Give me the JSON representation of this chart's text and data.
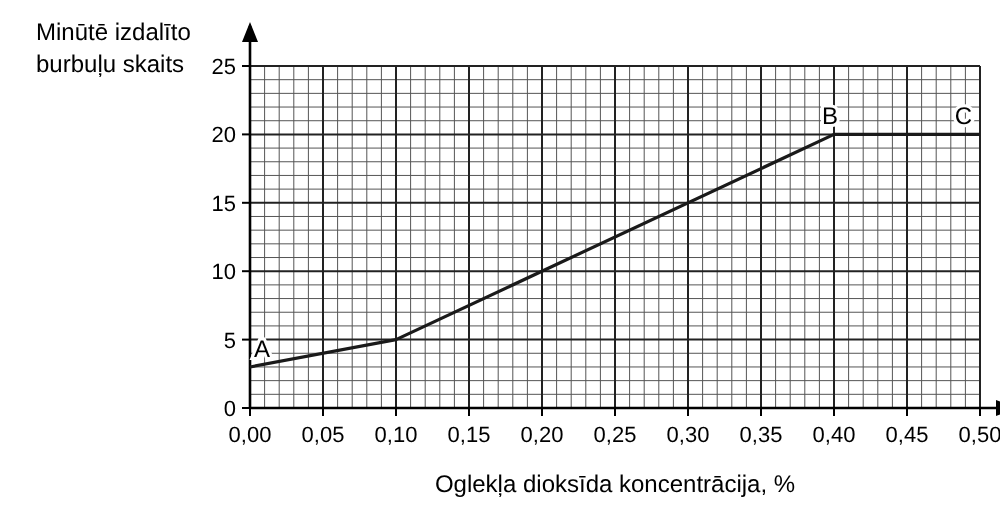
{
  "chart_data": {
    "type": "line",
    "ylabel": "Minūtē izdalīto burbuļu skaits",
    "xlabel": "Oglekļa dioksīda koncentrācija, %",
    "x": [
      0,
      0.1,
      0.4,
      0.5
    ],
    "series": [
      {
        "color": "#1a1a1a",
        "values": [
          3,
          5,
          20,
          20
        ]
      }
    ],
    "xlim": [
      0,
      0.5
    ],
    "ylim": [
      0,
      25
    ],
    "xticks": [
      {
        "value": 0,
        "label": "0,00"
      },
      {
        "value": 0.05,
        "label": "0,05"
      },
      {
        "value": 0.1,
        "label": "0,10"
      },
      {
        "value": 0.15,
        "label": "0,15"
      },
      {
        "value": 0.2,
        "label": "0,20"
      },
      {
        "value": 0.25,
        "label": "0,25"
      },
      {
        "value": 0.3,
        "label": "0,30"
      },
      {
        "value": 0.35,
        "label": "0,35"
      },
      {
        "value": 0.4,
        "label": "0,40"
      },
      {
        "value": 0.45,
        "label": "0,45"
      },
      {
        "value": 0.5,
        "label": "0,50"
      }
    ],
    "yticks": [
      0,
      5,
      10,
      15,
      20,
      25
    ],
    "grid": true,
    "marker": "none",
    "line_style": "solid",
    "annotations": [
      {
        "text": "A",
        "x": 0,
        "y": 3
      },
      {
        "text": "B",
        "x": 0.4,
        "y": 20
      },
      {
        "text": "C",
        "x": 0.5,
        "y": 20
      }
    ]
  }
}
